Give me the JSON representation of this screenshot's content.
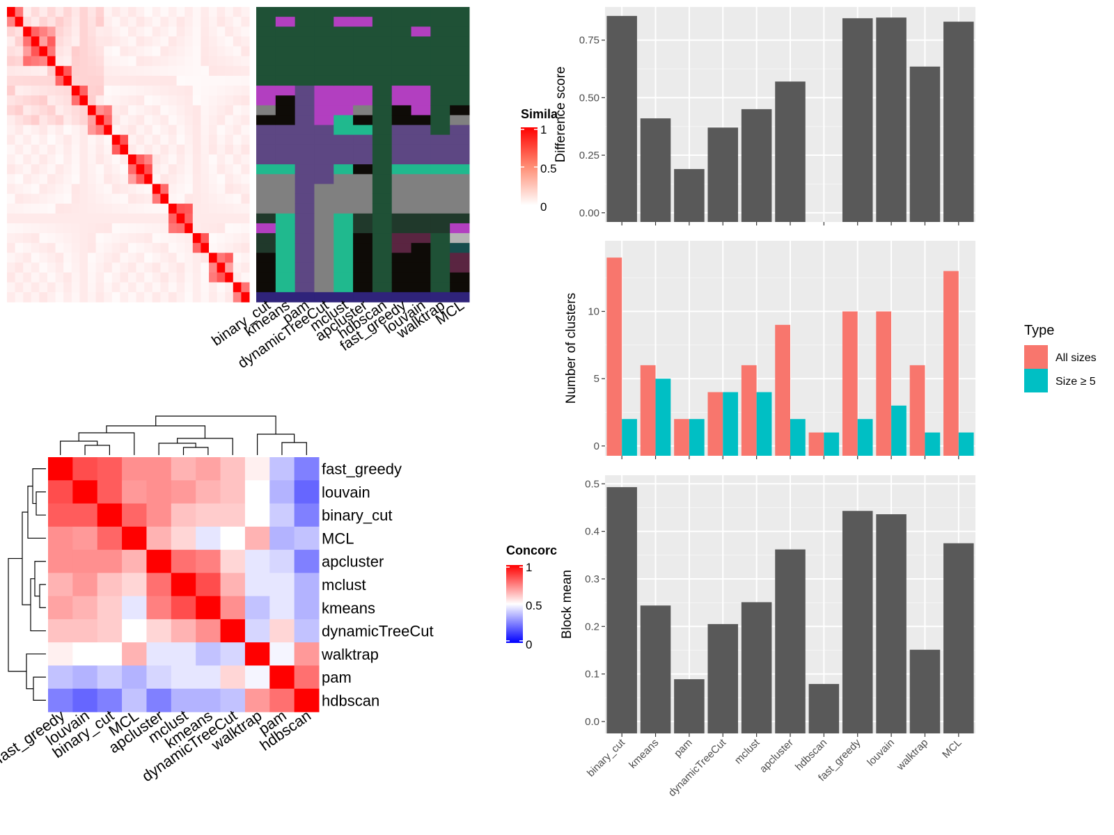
{
  "figure": {
    "similarity_heatmap": {
      "legend_title": "Simila",
      "legend_ticks": [
        "1",
        "0.5",
        "0"
      ],
      "methods": [
        "binary_cut",
        "kmeans",
        "pam",
        "dynamicTreeCut",
        "mclust",
        "apcluster",
        "hdbscan",
        "fast_greedy",
        "louvain",
        "walktrap",
        "MCL"
      ],
      "n_terms": 30
    },
    "concordance_heatmap": {
      "legend_title": "Concorc",
      "legend_ticks": [
        "1",
        "0.5",
        "0"
      ],
      "order": [
        "fast_greedy",
        "louvain",
        "binary_cut",
        "MCL",
        "apcluster",
        "mclust",
        "kmeans",
        "dynamicTreeCut",
        "walktrap",
        "pam",
        "hdbscan"
      ]
    },
    "legend_type": {
      "title": "Type",
      "items": [
        {
          "label": "All sizes",
          "color": "#F8766D"
        },
        {
          "label": "Size ≥ 5",
          "color": "#00BFC4"
        }
      ]
    },
    "colors": {
      "bar": "#595959",
      "panel_bg": "#EBEBEB",
      "heat_high": "#FF0000",
      "heat_low": "#0000FF"
    }
  },
  "chart_data": [
    {
      "type": "heatmap",
      "title": "",
      "legend_title": "Concorc",
      "rows": [
        "fast_greedy",
        "louvain",
        "binary_cut",
        "MCL",
        "apcluster",
        "mclust",
        "kmeans",
        "dynamicTreeCut",
        "walktrap",
        "pam",
        "hdbscan"
      ],
      "cols": [
        "fast_greedy",
        "louvain",
        "binary_cut",
        "MCL",
        "apcluster",
        "mclust",
        "kmeans",
        "dynamicTreeCut",
        "walktrap",
        "pam",
        "hdbscan"
      ],
      "values": [
        [
          1.0,
          0.85,
          0.82,
          0.72,
          0.72,
          0.65,
          0.68,
          0.62,
          0.53,
          0.38,
          0.25
        ],
        [
          0.85,
          1.0,
          0.82,
          0.7,
          0.72,
          0.7,
          0.65,
          0.62,
          0.5,
          0.35,
          0.2
        ],
        [
          0.82,
          0.82,
          1.0,
          0.8,
          0.72,
          0.62,
          0.6,
          0.6,
          0.5,
          0.4,
          0.25
        ],
        [
          0.72,
          0.7,
          0.8,
          1.0,
          0.65,
          0.58,
          0.45,
          0.5,
          0.65,
          0.35,
          0.38
        ],
        [
          0.72,
          0.72,
          0.72,
          0.65,
          1.0,
          0.78,
          0.75,
          0.58,
          0.45,
          0.42,
          0.25
        ],
        [
          0.65,
          0.7,
          0.62,
          0.58,
          0.78,
          1.0,
          0.85,
          0.65,
          0.45,
          0.45,
          0.35
        ],
        [
          0.68,
          0.65,
          0.6,
          0.45,
          0.75,
          0.85,
          1.0,
          0.72,
          0.38,
          0.45,
          0.35
        ],
        [
          0.62,
          0.62,
          0.6,
          0.5,
          0.58,
          0.65,
          0.72,
          1.0,
          0.42,
          0.58,
          0.38
        ],
        [
          0.53,
          0.5,
          0.5,
          0.65,
          0.45,
          0.45,
          0.38,
          0.42,
          1.0,
          0.48,
          0.7
        ],
        [
          0.38,
          0.35,
          0.4,
          0.35,
          0.42,
          0.45,
          0.45,
          0.58,
          0.48,
          1.0,
          0.78
        ],
        [
          0.25,
          0.2,
          0.25,
          0.38,
          0.25,
          0.35,
          0.35,
          0.38,
          0.7,
          0.78,
          1.0
        ]
      ],
      "range": [
        0,
        1
      ]
    },
    {
      "type": "bar",
      "categories": [
        "binary_cut",
        "kmeans",
        "pam",
        "dynamicTreeCut",
        "mclust",
        "apcluster",
        "hdbscan",
        "fast_greedy",
        "louvain",
        "walktrap",
        "MCL"
      ],
      "values": [
        0.855,
        0.41,
        0.19,
        0.37,
        0.45,
        0.57,
        null,
        0.845,
        0.848,
        0.635,
        0.83
      ],
      "xlabel": "",
      "ylabel": "Difference score",
      "ylim": [
        0,
        0.8
      ],
      "yticks": [
        "0.00",
        "0.25",
        "0.50",
        "0.75"
      ],
      "grid": true
    },
    {
      "type": "bar",
      "categories": [
        "binary_cut",
        "kmeans",
        "pam",
        "dynamicTreeCut",
        "mclust",
        "apcluster",
        "hdbscan",
        "fast_greedy",
        "louvain",
        "walktrap",
        "MCL"
      ],
      "series": [
        {
          "name": "All sizes",
          "values": [
            14,
            6,
            2,
            4,
            6,
            9,
            1,
            10,
            10,
            6,
            13
          ]
        },
        {
          "name": "Size ≥ 5",
          "values": [
            2,
            5,
            2,
            4,
            4,
            2,
            1,
            2,
            3,
            1,
            1
          ]
        }
      ],
      "xlabel": "",
      "ylabel": "Number of clusters",
      "ylim": [
        0,
        14
      ],
      "yticks": [
        "0",
        "5",
        "10"
      ],
      "legend_title": "Type",
      "legend": "right",
      "grid": true
    },
    {
      "type": "bar",
      "categories": [
        "binary_cut",
        "kmeans",
        "pam",
        "dynamicTreeCut",
        "mclust",
        "apcluster",
        "hdbscan",
        "fast_greedy",
        "louvain",
        "walktrap",
        "MCL"
      ],
      "values": [
        0.493,
        0.244,
        0.089,
        0.205,
        0.251,
        0.362,
        0.079,
        0.443,
        0.436,
        0.151,
        0.375
      ],
      "xlabel": "",
      "ylabel": "Block mean",
      "ylim": [
        0,
        0.5
      ],
      "yticks": [
        "0.0",
        "0.1",
        "0.2",
        "0.3",
        "0.4",
        "0.5"
      ],
      "grid": true
    }
  ]
}
